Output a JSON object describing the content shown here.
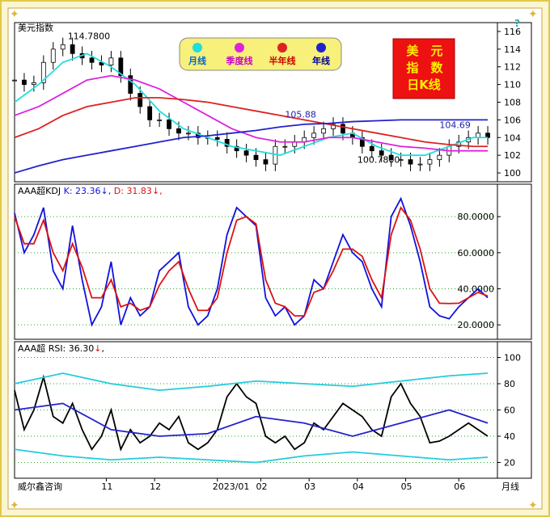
{
  "chart_data": [
    {
      "type": "candlestick",
      "pane_title": "美元指数",
      "ylim": [
        99,
        117
      ],
      "yticks": [
        100,
        102,
        104,
        106,
        108,
        110,
        112,
        114,
        116
      ],
      "annotations": [
        {
          "text": "114.7800",
          "x": 0.1,
          "y": 114.78
        },
        {
          "text": "105.88",
          "x": 0.55,
          "y": 105.88
        },
        {
          "text": "100.7800",
          "x": 0.7,
          "y": 100.78
        },
        {
          "text": "104.69",
          "x": 0.87,
          "y": 104.69
        }
      ],
      "legend": [
        {
          "label": "月线",
          "color": "#22dddd"
        },
        {
          "label": "季度线",
          "color": "#dd22dd"
        },
        {
          "label": "半年线",
          "color": "#dd2222"
        },
        {
          "label": "年线",
          "color": "#2222cc"
        }
      ],
      "badge": [
        "美",
        "元",
        "指",
        "数",
        "日K线"
      ],
      "series": [
        {
          "name": "price",
          "color": "#000000",
          "x": [
            0,
            0.02,
            0.04,
            0.06,
            0.08,
            0.1,
            0.12,
            0.14,
            0.16,
            0.18,
            0.2,
            0.22,
            0.24,
            0.26,
            0.28,
            0.3,
            0.32,
            0.34,
            0.36,
            0.38,
            0.4,
            0.42,
            0.44,
            0.46,
            0.48,
            0.5,
            0.52,
            0.54,
            0.56,
            0.58,
            0.6,
            0.62,
            0.64,
            0.66,
            0.68,
            0.7,
            0.72,
            0.74,
            0.76,
            0.78,
            0.8,
            0.82,
            0.84,
            0.86,
            0.88,
            0.9,
            0.92,
            0.94,
            0.96,
            0.98
          ],
          "values": [
            110.5,
            110,
            110.2,
            112.5,
            114,
            114.5,
            113.5,
            113,
            112.5,
            112.2,
            113,
            111,
            109,
            107.5,
            106,
            106,
            105,
            104.5,
            104.5,
            104,
            104,
            103.8,
            103,
            102.5,
            102,
            101.5,
            101,
            103,
            103,
            103.5,
            104,
            104.5,
            105,
            105.5,
            104.5,
            104,
            103,
            102.5,
            102,
            101.5,
            101.5,
            101,
            101,
            101.5,
            102,
            103,
            103.5,
            104,
            104.5,
            104
          ]
        },
        {
          "name": "月线",
          "color": "#22dddd",
          "x": [
            0,
            0.05,
            0.1,
            0.15,
            0.2,
            0.25,
            0.3,
            0.35,
            0.4,
            0.45,
            0.5,
            0.55,
            0.6,
            0.65,
            0.7,
            0.75,
            0.8,
            0.85,
            0.9,
            0.95,
            0.98
          ],
          "values": [
            108,
            110,
            112.5,
            113.5,
            112,
            110,
            107,
            105,
            104,
            103,
            102.5,
            102,
            103,
            104,
            104.5,
            103,
            102,
            102,
            103,
            104,
            104
          ]
        },
        {
          "name": "季度线",
          "color": "#dd22dd",
          "x": [
            0,
            0.05,
            0.1,
            0.15,
            0.2,
            0.25,
            0.3,
            0.35,
            0.4,
            0.45,
            0.5,
            0.55,
            0.6,
            0.65,
            0.7,
            0.75,
            0.8,
            0.85,
            0.9,
            0.95,
            0.98
          ],
          "values": [
            106.5,
            107.5,
            109,
            110.5,
            111,
            110.5,
            109.5,
            108,
            106.5,
            105,
            104,
            103.5,
            103.5,
            104,
            104,
            103.5,
            103,
            102.8,
            102.5,
            102.5,
            102.5
          ]
        },
        {
          "name": "半年线",
          "color": "#dd2222",
          "x": [
            0,
            0.05,
            0.1,
            0.15,
            0.2,
            0.25,
            0.3,
            0.35,
            0.4,
            0.45,
            0.5,
            0.55,
            0.6,
            0.65,
            0.7,
            0.75,
            0.8,
            0.85,
            0.9,
            0.95,
            0.98
          ],
          "values": [
            104,
            105,
            106.5,
            107.5,
            108,
            108.5,
            108.5,
            108.3,
            108,
            107.5,
            107,
            106.5,
            106,
            105.5,
            105,
            104.5,
            104,
            103.5,
            103.2,
            103,
            103
          ]
        },
        {
          "name": "年线",
          "color": "#2222cc",
          "x": [
            0,
            0.05,
            0.1,
            0.15,
            0.2,
            0.25,
            0.3,
            0.35,
            0.4,
            0.45,
            0.5,
            0.55,
            0.6,
            0.65,
            0.7,
            0.75,
            0.8,
            0.85,
            0.9,
            0.95,
            0.98
          ],
          "values": [
            100,
            100.8,
            101.5,
            102,
            102.5,
            103,
            103.5,
            104,
            104.2,
            104.5,
            104.8,
            105.2,
            105.5,
            105.6,
            105.8,
            105.9,
            106,
            106,
            106,
            106,
            106
          ]
        }
      ]
    },
    {
      "type": "line",
      "pane_title": "AAA超KDJ",
      "k_text": "K: 23.36",
      "d_text": "D: 31.83",
      "ylim": [
        12,
        98
      ],
      "yticks": [
        20,
        40,
        60,
        80
      ],
      "ytick_labels": [
        "20.0000",
        "40.0000",
        "60.0000",
        "80.0000"
      ],
      "series": [
        {
          "name": "K",
          "color": "#1111dd",
          "x": [
            0,
            0.02,
            0.04,
            0.06,
            0.08,
            0.1,
            0.12,
            0.14,
            0.16,
            0.18,
            0.2,
            0.22,
            0.24,
            0.26,
            0.28,
            0.3,
            0.32,
            0.34,
            0.36,
            0.38,
            0.4,
            0.42,
            0.44,
            0.46,
            0.48,
            0.5,
            0.52,
            0.54,
            0.56,
            0.58,
            0.6,
            0.62,
            0.64,
            0.66,
            0.68,
            0.7,
            0.72,
            0.74,
            0.76,
            0.78,
            0.8,
            0.82,
            0.84,
            0.86,
            0.88,
            0.9,
            0.92,
            0.94,
            0.96,
            0.98
          ],
          "values": [
            82,
            60,
            70,
            85,
            50,
            40,
            75,
            45,
            20,
            30,
            55,
            20,
            35,
            25,
            30,
            50,
            55,
            60,
            30,
            20,
            25,
            40,
            70,
            85,
            80,
            75,
            35,
            25,
            30,
            20,
            25,
            45,
            40,
            55,
            70,
            60,
            55,
            40,
            30,
            80,
            90,
            75,
            55,
            30,
            25,
            23.36,
            30,
            35,
            40,
            35
          ]
        },
        {
          "name": "D",
          "color": "#dd1111",
          "x": [
            0,
            0.02,
            0.04,
            0.06,
            0.08,
            0.1,
            0.12,
            0.14,
            0.16,
            0.18,
            0.2,
            0.22,
            0.24,
            0.26,
            0.28,
            0.3,
            0.32,
            0.34,
            0.36,
            0.38,
            0.4,
            0.42,
            0.44,
            0.46,
            0.48,
            0.5,
            0.52,
            0.54,
            0.56,
            0.58,
            0.6,
            0.62,
            0.64,
            0.66,
            0.68,
            0.7,
            0.72,
            0.74,
            0.76,
            0.78,
            0.8,
            0.82,
            0.84,
            0.86,
            0.88,
            0.9,
            0.92,
            0.94,
            0.96,
            0.98
          ],
          "values": [
            80,
            65,
            65,
            78,
            60,
            50,
            65,
            52,
            35,
            35,
            45,
            30,
            32,
            28,
            30,
            42,
            50,
            55,
            40,
            28,
            28,
            35,
            60,
            78,
            80,
            76,
            45,
            32,
            30,
            25,
            25,
            38,
            40,
            50,
            62,
            62,
            58,
            45,
            35,
            70,
            85,
            78,
            62,
            40,
            32,
            31.83,
            32,
            35,
            38,
            36
          ]
        }
      ]
    },
    {
      "type": "line",
      "pane_title": "AAA超",
      "rsi_text": "RSI: 36.30",
      "ylim": [
        8,
        112
      ],
      "yticks": [
        20,
        40,
        60,
        80,
        100
      ],
      "x_categories": [
        "11",
        "12",
        "2023/01",
        "02",
        "03",
        "04",
        "05",
        "06"
      ],
      "x_positions": [
        0.19,
        0.29,
        0.42,
        0.51,
        0.61,
        0.71,
        0.81,
        0.92
      ],
      "x_edge_label": "月线",
      "watermark": "威尔鑫咨询",
      "series": [
        {
          "name": "RSI",
          "color": "#000000",
          "x": [
            0,
            0.02,
            0.04,
            0.06,
            0.08,
            0.1,
            0.12,
            0.14,
            0.16,
            0.18,
            0.2,
            0.22,
            0.24,
            0.26,
            0.28,
            0.3,
            0.32,
            0.34,
            0.36,
            0.38,
            0.4,
            0.42,
            0.44,
            0.46,
            0.48,
            0.5,
            0.52,
            0.54,
            0.56,
            0.58,
            0.6,
            0.62,
            0.64,
            0.66,
            0.68,
            0.7,
            0.72,
            0.74,
            0.76,
            0.78,
            0.8,
            0.82,
            0.84,
            0.86,
            0.88,
            0.9,
            0.92,
            0.94,
            0.96,
            0.98
          ],
          "values": [
            75,
            45,
            60,
            85,
            55,
            50,
            65,
            45,
            30,
            40,
            60,
            30,
            45,
            35,
            40,
            50,
            45,
            55,
            35,
            30,
            35,
            45,
            70,
            80,
            70,
            65,
            40,
            35,
            40,
            30,
            35,
            50,
            45,
            55,
            65,
            60,
            55,
            45,
            40,
            70,
            80,
            65,
            55,
            35,
            36.3,
            40,
            45,
            50,
            45,
            40
          ]
        },
        {
          "name": "upper",
          "color": "#22ccdd",
          "x": [
            0,
            0.1,
            0.2,
            0.3,
            0.4,
            0.5,
            0.6,
            0.7,
            0.8,
            0.9,
            0.98
          ],
          "values": [
            80,
            88,
            80,
            75,
            78,
            82,
            80,
            78,
            82,
            86,
            88
          ]
        },
        {
          "name": "lower",
          "color": "#22ccdd",
          "x": [
            0,
            0.1,
            0.2,
            0.3,
            0.4,
            0.5,
            0.6,
            0.7,
            0.8,
            0.9,
            0.98
          ],
          "values": [
            30,
            25,
            22,
            24,
            22,
            20,
            25,
            28,
            25,
            22,
            24
          ]
        },
        {
          "name": "avg",
          "color": "#2222cc",
          "x": [
            0,
            0.1,
            0.2,
            0.3,
            0.4,
            0.5,
            0.6,
            0.7,
            0.8,
            0.9,
            0.98
          ],
          "values": [
            60,
            65,
            45,
            40,
            42,
            55,
            50,
            40,
            50,
            60,
            50
          ]
        }
      ]
    }
  ],
  "corner_help": "?"
}
